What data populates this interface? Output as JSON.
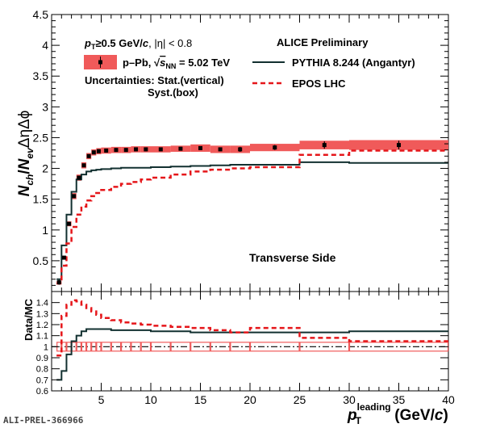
{
  "chart_data": [
    {
      "type": "line",
      "panel": "top",
      "ylabel": {
        "N": "N",
        "ch": "ch",
        "slash": "/",
        "N2": "N",
        "ev": "ev",
        "rest": "ΔηΔϕ"
      },
      "xlim": [
        0,
        40
      ],
      "ylim": [
        0,
        4.5
      ],
      "yticks": [
        "0.5",
        "1",
        "1.5",
        "2",
        "2.5",
        "3",
        "3.5",
        "4",
        "4.5"
      ],
      "yticks_values": [
        0.5,
        1,
        1.5,
        2,
        2.5,
        3,
        3.5,
        4,
        4.5
      ],
      "annotations": {
        "cut_p": "p",
        "cut_T": "T",
        "cut_rest": "≥0.5 GeV/",
        "cut_c": "c",
        "cut_eta": ", |η| < 0.8",
        "prelim": "ALICE Preliminary",
        "unc1": "Uncertainties: Stat.(vertical)",
        "unc2": "Syst.(box)",
        "region": "Transverse Side"
      },
      "legend": {
        "data_prefix": "p–Pb, ",
        "sqrt": "√",
        "s": "s",
        "nn": "NN",
        "data_suffix": " = 5.02 TeV",
        "pythia": "PYTHIA 8.244 (Angantyr)",
        "epos": "EPOS LHC"
      },
      "colors": {
        "data": "#000000",
        "syst": "#f05a5a",
        "pythia": "#123030",
        "epos": "#e5161a"
      },
      "edges": [
        0.5,
        1.0,
        1.5,
        2.0,
        2.5,
        3.0,
        3.5,
        4.0,
        4.5,
        5.0,
        6.0,
        7.0,
        8.0,
        9.0,
        10.0,
        12.0,
        14.0,
        16.0,
        18.0,
        20.0,
        25.0,
        30.0,
        40.0
      ],
      "series": [
        {
          "name": "data",
          "values": [
            0.15,
            0.55,
            1.1,
            1.55,
            1.85,
            2.05,
            2.2,
            2.26,
            2.28,
            2.29,
            2.3,
            2.3,
            2.31,
            2.31,
            2.31,
            2.32,
            2.33,
            2.31,
            2.31,
            2.34,
            2.38,
            2.38
          ],
          "stat": [
            0.04,
            0.03,
            0.03,
            0.03,
            0.03,
            0.03,
            0.03,
            0.03,
            0.03,
            0.03,
            0.03,
            0.03,
            0.03,
            0.03,
            0.03,
            0.03,
            0.03,
            0.03,
            0.04,
            0.04,
            0.06,
            0.07
          ],
          "syst": [
            0.02,
            0.03,
            0.04,
            0.05,
            0.05,
            0.05,
            0.05,
            0.05,
            0.05,
            0.05,
            0.05,
            0.05,
            0.05,
            0.05,
            0.05,
            0.05,
            0.06,
            0.06,
            0.06,
            0.06,
            0.07,
            0.08
          ]
        },
        {
          "name": "PYTHIA 8.244 (Angantyr)",
          "values": [
            0.2,
            0.75,
            1.25,
            1.62,
            1.82,
            1.9,
            1.95,
            1.97,
            1.98,
            1.99,
            2.0,
            2.01,
            2.01,
            2.01,
            2.02,
            2.03,
            2.04,
            2.05,
            2.06,
            2.06,
            2.1,
            2.09
          ]
        },
        {
          "name": "EPOS LHC",
          "values": [
            0.13,
            0.42,
            0.78,
            1.05,
            1.25,
            1.38,
            1.48,
            1.55,
            1.6,
            1.65,
            1.7,
            1.75,
            1.78,
            1.82,
            1.85,
            1.9,
            1.95,
            1.98,
            2.0,
            2.02,
            2.22,
            2.29
          ]
        }
      ]
    },
    {
      "type": "line",
      "panel": "ratio",
      "ylabel": "Data/MC",
      "xlabel": {
        "p": "p",
        "leading": "leading",
        "T": "T",
        "unit_open": " (GeV/",
        "c": "c",
        "unit_close": ")"
      },
      "xlim": [
        0,
        40
      ],
      "ylim": [
        0.6,
        1.5
      ],
      "xticks": [
        "5",
        "10",
        "15",
        "20",
        "25",
        "30",
        "35",
        "40"
      ],
      "xticks_values": [
        5,
        10,
        15,
        20,
        25,
        30,
        35,
        40
      ],
      "yticks": [
        "0.6",
        "0.7",
        "0.8",
        "0.9",
        "1",
        "1.1",
        "1.2",
        "1.3",
        "1.4"
      ],
      "yticks_values": [
        0.6,
        0.7,
        0.8,
        0.9,
        1.0,
        1.1,
        1.2,
        1.3,
        1.4
      ],
      "reference_line": 1.0,
      "series": [
        {
          "name": "Data/PYTHIA",
          "values": [
            0.7,
            0.78,
            0.93,
            1.05,
            1.1,
            1.14,
            1.16,
            1.16,
            1.16,
            1.16,
            1.15,
            1.15,
            1.15,
            1.15,
            1.14,
            1.14,
            1.13,
            1.13,
            1.13,
            1.13,
            1.13,
            1.14
          ]
        },
        {
          "name": "Data/EPOS",
          "values": [
            0.92,
            1.28,
            1.38,
            1.42,
            1.41,
            1.38,
            1.35,
            1.32,
            1.29,
            1.26,
            1.24,
            1.22,
            1.21,
            1.2,
            1.19,
            1.18,
            1.17,
            1.15,
            1.13,
            1.17,
            1.08,
            1.05
          ]
        },
        {
          "name": "syst",
          "values": [
            0.04,
            0.04,
            0.04,
            0.04,
            0.04,
            0.04,
            0.04,
            0.04,
            0.04,
            0.04,
            0.04,
            0.04,
            0.04,
            0.04,
            0.04,
            0.04,
            0.04,
            0.04,
            0.04,
            0.04,
            0.04,
            0.04
          ]
        }
      ]
    }
  ],
  "footer": {
    "label": "ALI-PREL-366966"
  }
}
